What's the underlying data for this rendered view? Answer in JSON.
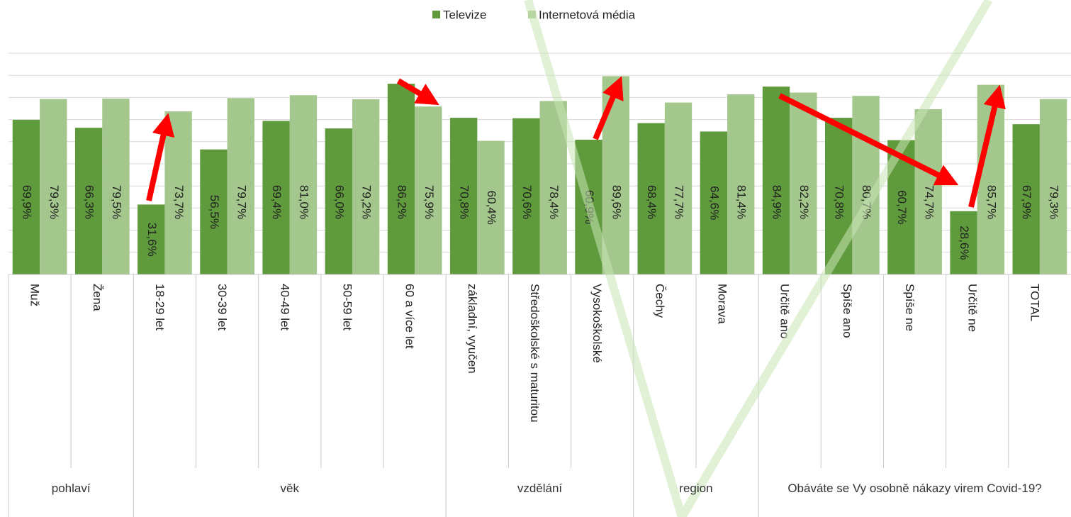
{
  "chart_data": {
    "type": "bar",
    "groups": [
      {
        "label": "pohlaví",
        "categories": [
          "Muž",
          "Žena"
        ]
      },
      {
        "label": "věk",
        "categories": [
          "18-29 let",
          "30-39 let",
          "40-49 let",
          "50-59 let",
          "60 a více let"
        ]
      },
      {
        "label": "vzdělání",
        "categories": [
          "základní, vyučen",
          "Středoškolské s maturitou",
          "Vysokoškolské"
        ]
      },
      {
        "label": "region",
        "categories": [
          "Čechy",
          "Morava"
        ]
      },
      {
        "label": "Obáváte se Vy osobně nákazy virem Covid-19?",
        "categories": [
          "Určitě ano",
          "Spíše ano",
          "Spíše ne",
          "Určitě ne",
          "TOTAL"
        ]
      }
    ],
    "series": [
      {
        "name": "Televize",
        "color": "#5f9a3d",
        "values": [
          69.9,
          66.3,
          31.6,
          56.5,
          69.4,
          66.0,
          86.2,
          70.8,
          70.6,
          60.9,
          68.4,
          64.6,
          84.9,
          70.8,
          60.7,
          28.6,
          67.9
        ],
        "value_labels": [
          "69,9%",
          "66,3%",
          "31,6%",
          "56,5%",
          "69,4%",
          "66,0%",
          "86,2%",
          "70,8%",
          "70,6%",
          "60,9%",
          "68,4%",
          "64,6%",
          "84,9%",
          "70,8%",
          "60,7%",
          "28,6%",
          "67,9%"
        ]
      },
      {
        "name": "Internetová média",
        "color": "#a4c78d",
        "values": [
          79.3,
          79.5,
          73.7,
          79.7,
          81.0,
          79.2,
          75.9,
          60.4,
          78.4,
          89.6,
          77.7,
          81.4,
          82.2,
          80.7,
          74.7,
          85.7,
          79.3
        ],
        "value_labels": [
          "79,3%",
          "79,5%",
          "73,7%",
          "79,7%",
          "81,0%",
          "79,2%",
          "75,9%",
          "60,4%",
          "78,4%",
          "89,6%",
          "77,7%",
          "81,4%",
          "82,2%",
          "80,7%",
          "74,7%",
          "85,7%",
          "79,3%"
        ]
      }
    ],
    "ylim": [
      0,
      100
    ],
    "yticks": [
      0,
      10,
      20,
      30,
      40,
      50,
      60,
      70,
      80,
      90,
      100
    ],
    "grid": true
  }
}
